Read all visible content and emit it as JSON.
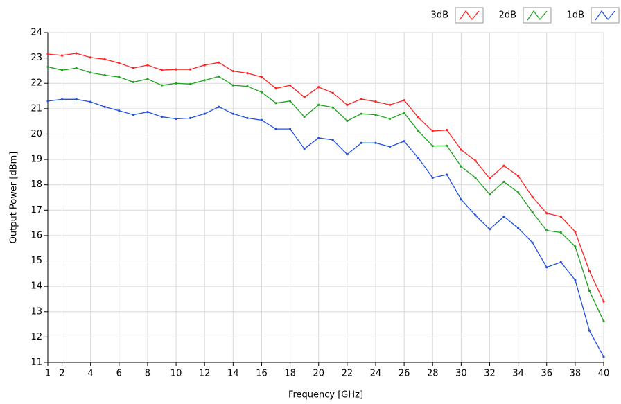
{
  "chart_data": {
    "type": "line",
    "xlabel": "Frequency [GHz]",
    "ylabel": "Output Power [dBm]",
    "x": [
      1,
      2,
      3,
      4,
      5,
      6,
      7,
      8,
      9,
      10,
      11,
      12,
      13,
      14,
      15,
      16,
      17,
      18,
      19,
      20,
      21,
      22,
      23,
      24,
      25,
      26,
      27,
      28,
      29,
      30,
      31,
      32,
      33,
      34,
      35,
      36,
      37,
      38,
      39,
      40
    ],
    "series": [
      {
        "name": "3dB",
        "color": "#ff2020",
        "values": [
          23.15,
          23.1,
          23.18,
          23.02,
          22.95,
          22.8,
          22.6,
          22.72,
          22.52,
          22.55,
          22.55,
          22.72,
          22.82,
          22.48,
          22.4,
          22.25,
          21.8,
          21.92,
          21.45,
          21.85,
          21.62,
          21.15,
          21.38,
          21.28,
          21.15,
          21.33,
          20.65,
          20.12,
          20.16,
          19.38,
          18.95,
          18.25,
          18.75,
          18.35,
          17.52,
          16.88,
          16.75,
          16.15,
          14.6,
          13.4
        ]
      },
      {
        "name": "2dB",
        "color": "#20a020",
        "values": [
          22.65,
          22.52,
          22.6,
          22.42,
          22.32,
          22.25,
          22.05,
          22.17,
          21.92,
          22.0,
          21.97,
          22.12,
          22.27,
          21.92,
          21.88,
          21.65,
          21.22,
          21.3,
          20.68,
          21.15,
          21.05,
          20.52,
          20.8,
          20.76,
          20.6,
          20.83,
          20.12,
          19.53,
          19.54,
          18.72,
          18.28,
          17.62,
          18.12,
          17.7,
          16.92,
          16.2,
          16.12,
          15.57,
          13.82,
          12.62
        ]
      },
      {
        "name": "1dB",
        "color": "#2050e0",
        "values": [
          21.3,
          21.37,
          21.37,
          21.27,
          21.07,
          20.92,
          20.76,
          20.87,
          20.68,
          20.6,
          20.63,
          20.8,
          21.07,
          20.8,
          20.63,
          20.55,
          20.2,
          20.2,
          19.42,
          19.85,
          19.77,
          19.2,
          19.65,
          19.65,
          19.5,
          19.72,
          19.05,
          18.28,
          18.4,
          17.42,
          16.8,
          16.25,
          16.75,
          16.3,
          15.72,
          14.75,
          14.95,
          14.25,
          12.25,
          11.22
        ]
      }
    ],
    "xlim": [
      1,
      40
    ],
    "xticks": [
      1,
      2,
      4,
      6,
      8,
      10,
      12,
      14,
      16,
      18,
      20,
      22,
      24,
      26,
      28,
      30,
      32,
      34,
      36,
      38,
      40
    ],
    "ylim": [
      11,
      24
    ],
    "yticks": [
      11,
      12,
      13,
      14,
      15,
      16,
      17,
      18,
      19,
      20,
      21,
      22,
      23,
      24
    ],
    "grid": true,
    "legend": "top-right"
  }
}
